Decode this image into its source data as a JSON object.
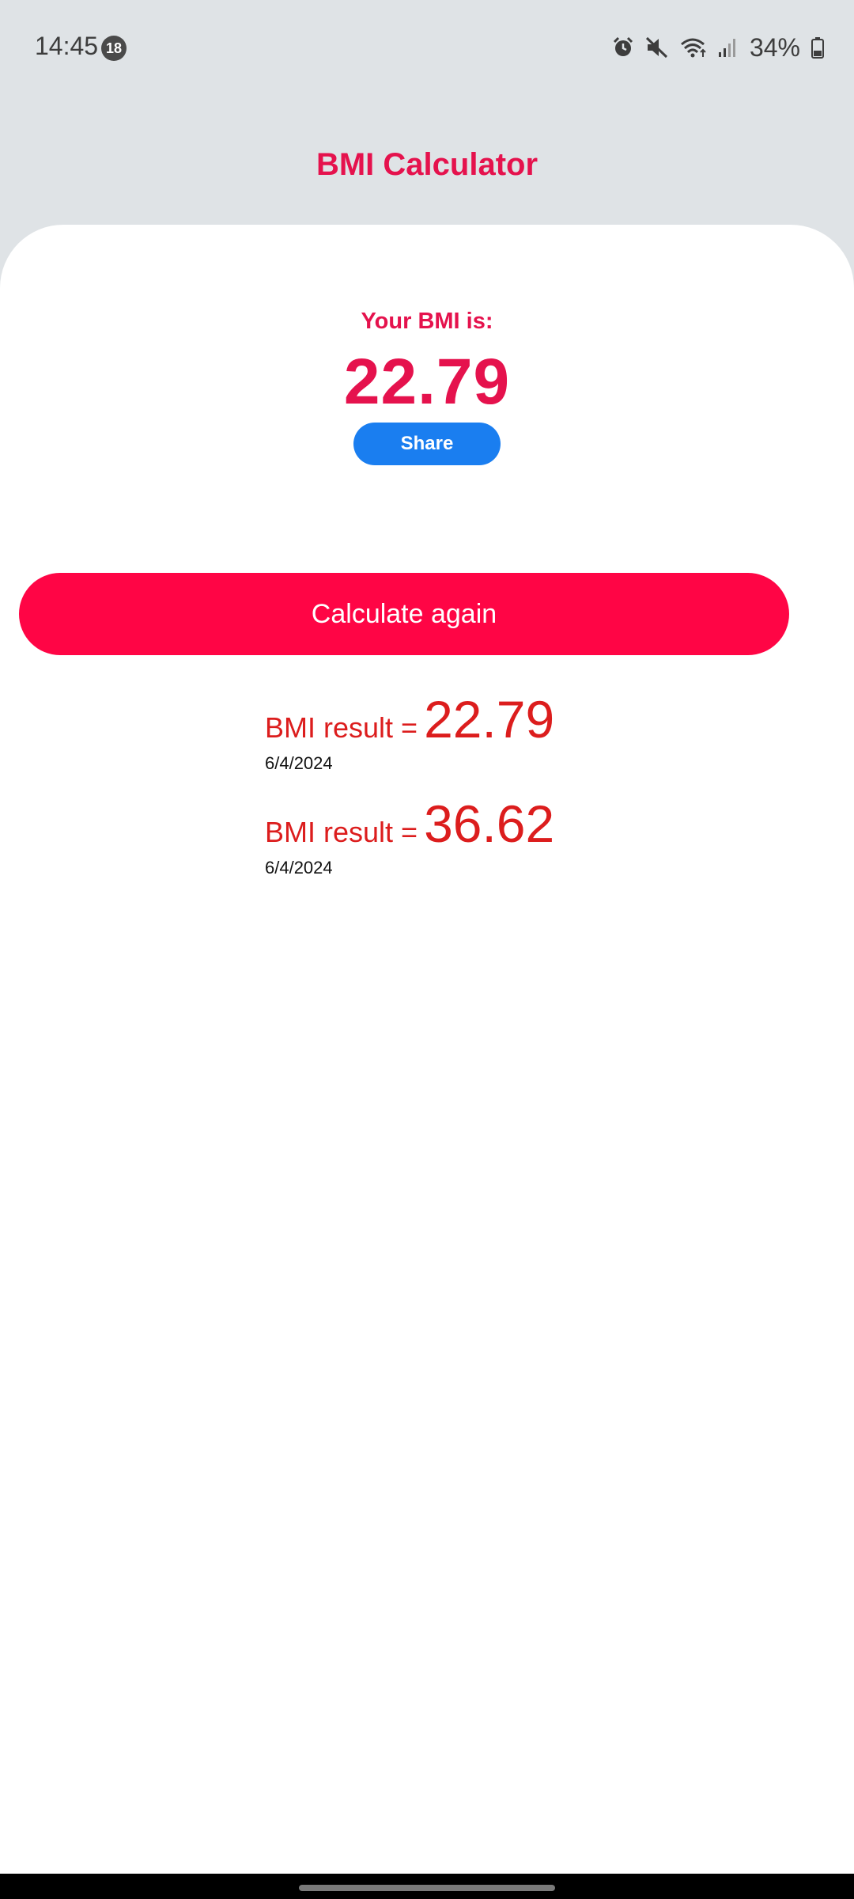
{
  "status_bar": {
    "time": "14:45",
    "notification_count": "18",
    "battery_percent": "34%",
    "icons": [
      "alarm-icon",
      "mute-icon",
      "wifi-icon",
      "signal-icon",
      "battery-icon"
    ]
  },
  "header": {
    "title": "BMI Calculator"
  },
  "result": {
    "label": "Your BMI is:",
    "value": "22.79",
    "share_label": "Share"
  },
  "actions": {
    "calculate_again_label": "Calculate again"
  },
  "history": [
    {
      "prefix": "BMI result =",
      "value": "22.79",
      "date": "6/4/2024"
    },
    {
      "prefix": "BMI result =",
      "value": "36.62",
      "date": "6/4/2024"
    }
  ],
  "colors": {
    "accent": "#e5124d",
    "button_primary": "#ff0545",
    "share_blue": "#1a7ef0",
    "history_red": "#dc1d1d",
    "background_gray": "#dfe3e6"
  }
}
